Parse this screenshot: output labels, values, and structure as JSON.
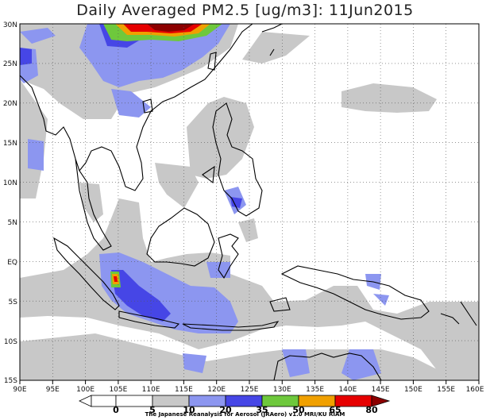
{
  "title": "Daily Averaged PM2.5 [ug/m3]: 11Jun2015",
  "credit": "The Japanese Reanalysis for Aerosol (JRAero) v1.0 MRI/KU RIAM",
  "map": {
    "lon_range": [
      90,
      160
    ],
    "lat_range": [
      -15,
      30
    ],
    "x_ticks": [
      "90E",
      "95E",
      "100E",
      "105E",
      "110E",
      "115E",
      "120E",
      "125E",
      "130E",
      "135E",
      "140E",
      "145E",
      "150E",
      "155E",
      "160E"
    ],
    "y_ticks": [
      "30N",
      "25N",
      "20N",
      "15N",
      "10N",
      "5N",
      "EQ",
      "5S",
      "10S",
      "15S"
    ],
    "grid": "dotted"
  },
  "colorbar": {
    "levels": [
      "0",
      "5",
      "10",
      "20",
      "35",
      "50",
      "65",
      "80"
    ],
    "colors": {
      "0-5": "#ffffff",
      "5-10": "#ffffff",
      "10-20": "#c8c8c8",
      "20-35": "#8c96f0",
      "35-50": "#4646e6",
      "50-65": "#6ec83c",
      "65-80": "#f0a000",
      "80+": "#e60000",
      "max": "#8c0000"
    }
  }
}
